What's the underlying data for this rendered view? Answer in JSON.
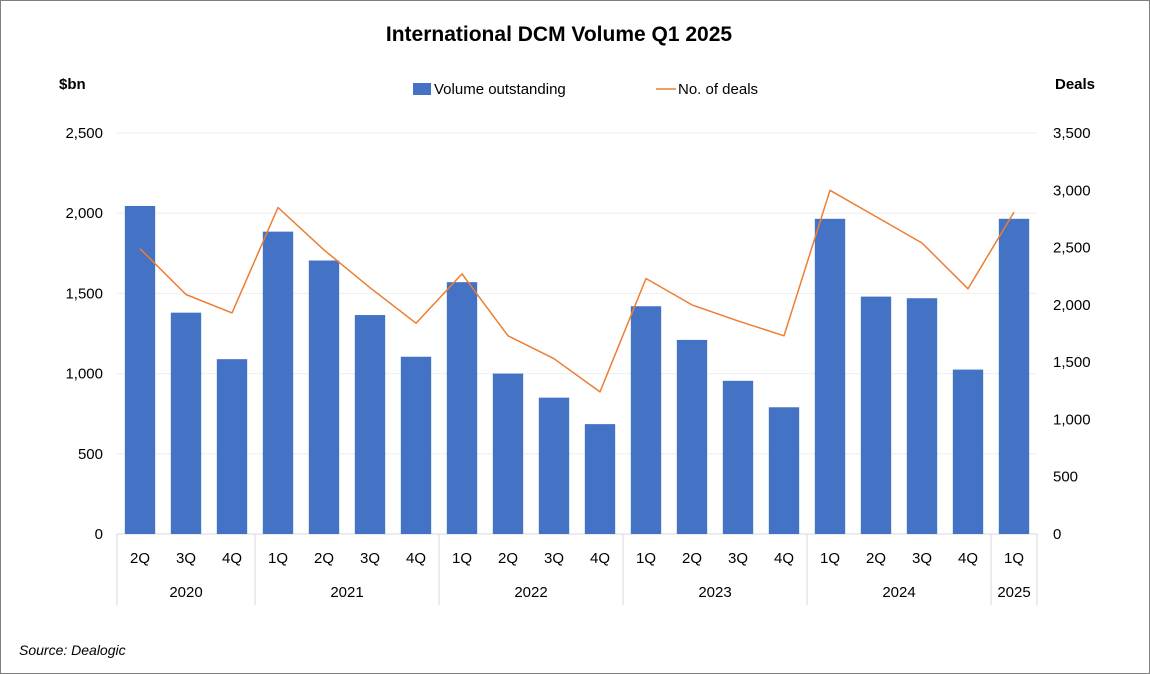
{
  "chart_data": {
    "type": "bar",
    "title": "International DCM Volume Q1 2025",
    "ylabel_left": "$bn",
    "ylabel_right": "Deals",
    "ylim_left": [
      0,
      2500
    ],
    "ylim_right": [
      0,
      3500
    ],
    "yticks_left": [
      "0",
      "500",
      "1,000",
      "1,500",
      "2,000",
      "2,500"
    ],
    "yticks_right": [
      "0",
      "500",
      "1,000",
      "1,500",
      "2,000",
      "2,500",
      "3,000",
      "3,500"
    ],
    "categories": [
      "2Q",
      "3Q",
      "4Q",
      "1Q",
      "2Q",
      "3Q",
      "4Q",
      "1Q",
      "2Q",
      "3Q",
      "4Q",
      "1Q",
      "2Q",
      "3Q",
      "4Q",
      "1Q",
      "2Q",
      "3Q",
      "4Q",
      "1Q"
    ],
    "year_groups": [
      {
        "label": "2020",
        "count": 3
      },
      {
        "label": "2021",
        "count": 4
      },
      {
        "label": "2022",
        "count": 4
      },
      {
        "label": "2023",
        "count": 4
      },
      {
        "label": "2024",
        "count": 4
      },
      {
        "label": "2025",
        "count": 1
      }
    ],
    "series": [
      {
        "name": "Volume outstanding",
        "type": "bar",
        "axis": "left",
        "color": "#4472C4",
        "values": [
          2045,
          1380,
          1090,
          1885,
          1705,
          1365,
          1105,
          1570,
          1000,
          850,
          685,
          1420,
          1210,
          955,
          790,
          1965,
          1480,
          1470,
          1025,
          1965
        ]
      },
      {
        "name": "No. of deals",
        "type": "line",
        "axis": "right",
        "color": "#ED7D31",
        "values": [
          2490,
          2090,
          1930,
          2850,
          2480,
          2150,
          1840,
          2270,
          1730,
          1530,
          1240,
          2230,
          2000,
          1860,
          1730,
          3000,
          2770,
          2540,
          2140,
          2810
        ]
      }
    ],
    "source": "Source: Dealogic"
  }
}
